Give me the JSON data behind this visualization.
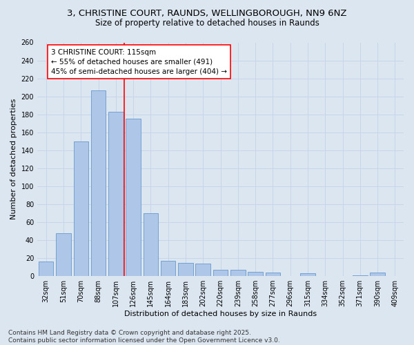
{
  "title_line1": "3, CHRISTINE COURT, RAUNDS, WELLINGBOROUGH, NN9 6NZ",
  "title_line2": "Size of property relative to detached houses in Raunds",
  "xlabel": "Distribution of detached houses by size in Raunds",
  "ylabel": "Number of detached properties",
  "categories": [
    "32sqm",
    "51sqm",
    "70sqm",
    "88sqm",
    "107sqm",
    "126sqm",
    "145sqm",
    "164sqm",
    "183sqm",
    "202sqm",
    "220sqm",
    "239sqm",
    "258sqm",
    "277sqm",
    "296sqm",
    "315sqm",
    "334sqm",
    "352sqm",
    "371sqm",
    "390sqm",
    "409sqm"
  ],
  "values": [
    16,
    48,
    150,
    207,
    183,
    175,
    70,
    17,
    15,
    14,
    7,
    7,
    5,
    4,
    0,
    3,
    0,
    0,
    1,
    4,
    0
  ],
  "bar_color": "#aec6e8",
  "bar_edge_color": "#6699cc",
  "vline_color": "red",
  "vline_bar_index": 4,
  "annotation_text": "3 CHRISTINE COURT: 115sqm\n← 55% of detached houses are smaller (491)\n45% of semi-detached houses are larger (404) →",
  "annotation_box_facecolor": "white",
  "annotation_box_edgecolor": "red",
  "ylim": [
    0,
    260
  ],
  "yticks": [
    0,
    20,
    40,
    60,
    80,
    100,
    120,
    140,
    160,
    180,
    200,
    220,
    240,
    260
  ],
  "grid_color": "#c8d4e8",
  "background_color": "#dce6f0",
  "title_fontsize": 9.5,
  "subtitle_fontsize": 8.5,
  "axis_label_fontsize": 8,
  "tick_fontsize": 7,
  "annotation_fontsize": 7.5,
  "footer_fontsize": 6.5,
  "footer_line1": "Contains HM Land Registry data © Crown copyright and database right 2025.",
  "footer_line2": "Contains public sector information licensed under the Open Government Licence v3.0."
}
